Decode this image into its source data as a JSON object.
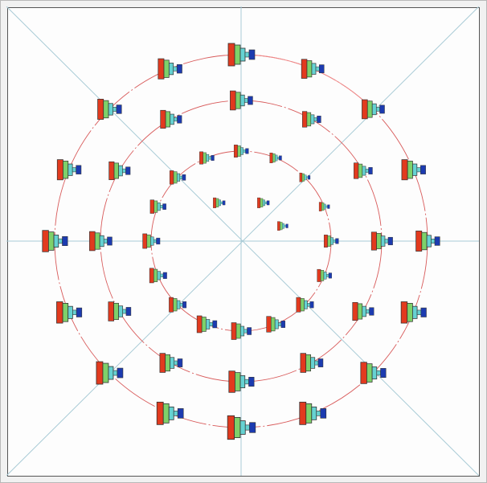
{
  "diagram": {
    "colors": {
      "background": "#fdfdfd",
      "guide_line": "#a9cbd6",
      "ring": "#d85a5a",
      "arrow": "#f08a8a",
      "outline": "#333333",
      "stage_red": "#e23a1e",
      "stage_green": "#7ed16a",
      "stage_cyan": "#66d2d2",
      "stage_blue": "#1c3bb0"
    },
    "rings": [
      {
        "name": "inner-ring",
        "markers": [
          {
            "angle_deg": 90,
            "scale": 0.55
          },
          {
            "angle_deg": 67.5,
            "scale": 0.45
          },
          {
            "angle_deg": 45,
            "scale": 0.4
          },
          {
            "angle_deg": 22.5,
            "scale": 0.4
          },
          {
            "angle_deg": 0,
            "scale": 0.55
          },
          {
            "angle_deg": -22.5,
            "scale": 0.55
          },
          {
            "angle_deg": -45,
            "scale": 0.65
          },
          {
            "angle_deg": -67.5,
            "scale": 0.7
          },
          {
            "angle_deg": -90,
            "scale": 0.75
          },
          {
            "angle_deg": -112.5,
            "scale": 0.75
          },
          {
            "angle_deg": -135,
            "scale": 0.65
          },
          {
            "angle_deg": -157.5,
            "scale": 0.65
          },
          {
            "angle_deg": 180,
            "scale": 0.65
          },
          {
            "angle_deg": 157.5,
            "scale": 0.6
          },
          {
            "angle_deg": 135,
            "scale": 0.6
          },
          {
            "angle_deg": 112.5,
            "scale": 0.55
          }
        ]
      },
      {
        "name": "middle-ring",
        "markers": [
          {
            "angle_deg": 90,
            "scale": 0.85
          },
          {
            "angle_deg": 60,
            "scale": 0.7
          },
          {
            "angle_deg": 30,
            "scale": 0.7
          },
          {
            "angle_deg": 0,
            "scale": 0.8
          },
          {
            "angle_deg": -30,
            "scale": 0.8
          },
          {
            "angle_deg": -60,
            "scale": 0.85
          },
          {
            "angle_deg": -90,
            "scale": 0.95
          },
          {
            "angle_deg": -120,
            "scale": 0.85
          },
          {
            "angle_deg": -150,
            "scale": 0.85
          },
          {
            "angle_deg": 180,
            "scale": 0.85
          },
          {
            "angle_deg": 150,
            "scale": 0.8
          },
          {
            "angle_deg": 120,
            "scale": 0.8
          }
        ]
      },
      {
        "name": "outer-ring",
        "markers": [
          {
            "angle_deg": 90,
            "scale": 1.0
          },
          {
            "angle_deg": 67.5,
            "scale": 0.85
          },
          {
            "angle_deg": 45,
            "scale": 0.85
          },
          {
            "angle_deg": 22.5,
            "scale": 0.9
          },
          {
            "angle_deg": 0,
            "scale": 0.9
          },
          {
            "angle_deg": -22.5,
            "scale": 0.95
          },
          {
            "angle_deg": -45,
            "scale": 0.95
          },
          {
            "angle_deg": -67.5,
            "scale": 1.0
          },
          {
            "angle_deg": -90,
            "scale": 1.05
          },
          {
            "angle_deg": -112.5,
            "scale": 1.0
          },
          {
            "angle_deg": -135,
            "scale": 1.0
          },
          {
            "angle_deg": -157.5,
            "scale": 0.95
          },
          {
            "angle_deg": 180,
            "scale": 0.95
          },
          {
            "angle_deg": 157.5,
            "scale": 0.9
          },
          {
            "angle_deg": 135,
            "scale": 0.9
          },
          {
            "angle_deg": 112.5,
            "scale": 0.9
          }
        ]
      }
    ],
    "center_markers": [
      {
        "angle_deg": 120,
        "scale": 0.45
      },
      {
        "angle_deg": 60,
        "scale": 0.45
      },
      {
        "angle_deg": 20,
        "scale": 0.4
      }
    ],
    "arrow": {
      "direction": "clockwise",
      "from_angle_deg": 95,
      "to_angle_deg": 45,
      "ring": "outer-ring"
    }
  }
}
